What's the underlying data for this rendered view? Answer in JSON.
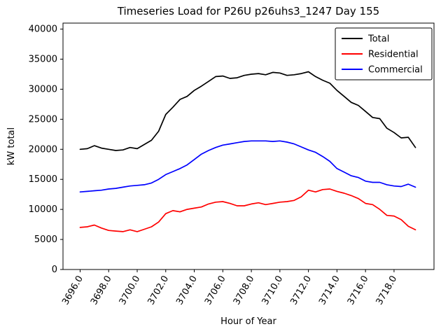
{
  "chart_data": {
    "type": "line",
    "title": "Timeseries Load for P26U p26uhs3_1247  Day 155",
    "xlabel": "Hour of Year",
    "ylabel": "kW total",
    "xlim": [
      3694.8,
      3720.8
    ],
    "ylim": [
      0,
      41000
    ],
    "grid": false,
    "legend_position": "upper right",
    "x": [
      3696.0,
      3696.5,
      3697.0,
      3697.5,
      3698.0,
      3698.5,
      3699.0,
      3699.5,
      3700.0,
      3700.5,
      3701.0,
      3701.5,
      3702.0,
      3702.5,
      3703.0,
      3703.5,
      3704.0,
      3704.5,
      3705.0,
      3705.5,
      3706.0,
      3706.5,
      3707.0,
      3707.5,
      3708.0,
      3708.5,
      3709.0,
      3709.5,
      3710.0,
      3710.5,
      3711.0,
      3711.5,
      3712.0,
      3712.5,
      3713.0,
      3713.5,
      3714.0,
      3714.5,
      3715.0,
      3715.5,
      3716.0,
      3716.5,
      3717.0,
      3717.5,
      3718.0,
      3718.5,
      3719.0,
      3719.5
    ],
    "series": [
      {
        "name": "Total",
        "color": "#000000",
        "values": [
          20000,
          20100,
          20600,
          20200,
          20000,
          19800,
          19900,
          20300,
          20100,
          20800,
          21500,
          23000,
          25800,
          27000,
          28300,
          28800,
          29800,
          30500,
          31300,
          32100,
          32200,
          31800,
          31900,
          32300,
          32500,
          32600,
          32400,
          32800,
          32700,
          32300,
          32400,
          32600,
          32900,
          32100,
          31500,
          31000,
          29800,
          28800,
          27800,
          27300,
          26300,
          25300,
          25100,
          23500,
          22800,
          21900,
          22000,
          20300
        ]
      },
      {
        "name": "Residential",
        "color": "#ff0000",
        "values": [
          7000,
          7100,
          7400,
          6900,
          6500,
          6400,
          6300,
          6600,
          6300,
          6700,
          7100,
          7900,
          9300,
          9800,
          9600,
          10000,
          10200,
          10400,
          10900,
          11200,
          11300,
          11000,
          10600,
          10600,
          10900,
          11100,
          10800,
          11000,
          11200,
          11300,
          11500,
          12100,
          13200,
          12900,
          13300,
          13400,
          13000,
          12700,
          12300,
          11800,
          11000,
          10800,
          10000,
          9000,
          8900,
          8300,
          7200,
          6600
        ]
      },
      {
        "name": "Commercial",
        "color": "#0000ff",
        "values": [
          12900,
          13000,
          13100,
          13200,
          13400,
          13500,
          13700,
          13900,
          14000,
          14100,
          14400,
          15000,
          15800,
          16300,
          16800,
          17400,
          18300,
          19200,
          19800,
          20300,
          20700,
          20900,
          21100,
          21300,
          21400,
          21400,
          21400,
          21300,
          21400,
          21200,
          20900,
          20400,
          19900,
          19500,
          18800,
          18000,
          16800,
          16200,
          15600,
          15300,
          14700,
          14500,
          14500,
          14100,
          13900,
          13800,
          14200,
          13700
        ]
      }
    ],
    "xticks": [
      {
        "value": 3696,
        "label": "3696.0"
      },
      {
        "value": 3698,
        "label": "3698.0"
      },
      {
        "value": 3700,
        "label": "3700.0"
      },
      {
        "value": 3702,
        "label": "3702.0"
      },
      {
        "value": 3704,
        "label": "3704.0"
      },
      {
        "value": 3706,
        "label": "3706.0"
      },
      {
        "value": 3708,
        "label": "3708.0"
      },
      {
        "value": 3710,
        "label": "3710.0"
      },
      {
        "value": 3712,
        "label": "3712.0"
      },
      {
        "value": 3714,
        "label": "3714.0"
      },
      {
        "value": 3716,
        "label": "3716.0"
      },
      {
        "value": 3718,
        "label": "3718.0"
      }
    ],
    "yticks": [
      {
        "value": 0,
        "label": "0"
      },
      {
        "value": 5000,
        "label": "5000"
      },
      {
        "value": 10000,
        "label": "10000"
      },
      {
        "value": 15000,
        "label": "15000"
      },
      {
        "value": 20000,
        "label": "20000"
      },
      {
        "value": 25000,
        "label": "25000"
      },
      {
        "value": 30000,
        "label": "30000"
      },
      {
        "value": 35000,
        "label": "35000"
      },
      {
        "value": 40000,
        "label": "40000"
      }
    ]
  }
}
